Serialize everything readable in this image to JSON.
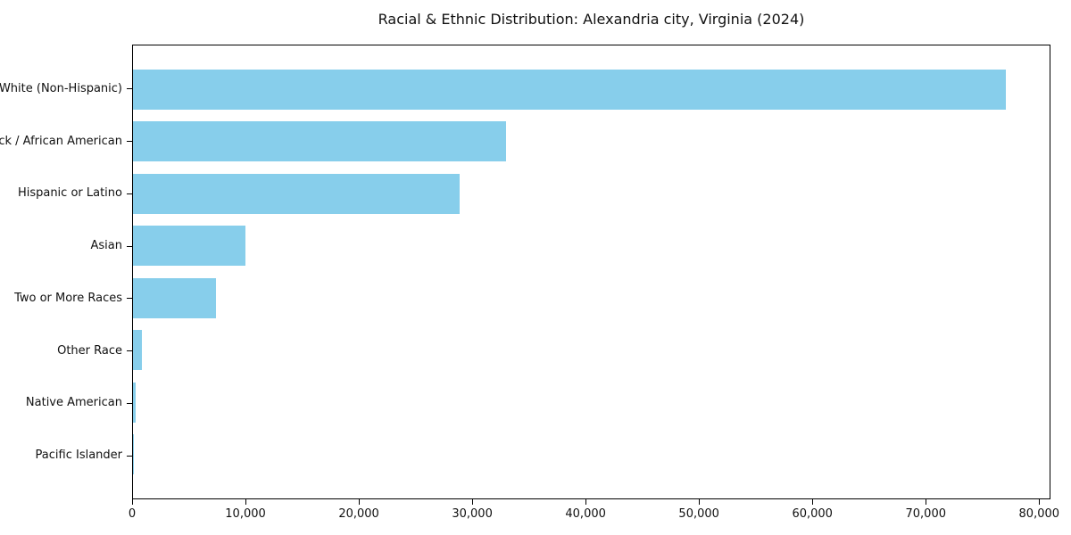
{
  "title": "Racial & Ethnic Distribution: Alexandria city, Virginia (2024)",
  "colors": {
    "bar": "#87CEEB",
    "axis": "#000000",
    "text": "#111111",
    "background": "#ffffff"
  },
  "chart_data": {
    "type": "bar",
    "orientation": "horizontal",
    "title": "Racial & Ethnic Distribution: Alexandria city, Virginia (2024)",
    "xlabel": "",
    "ylabel": "",
    "categories": [
      "White (Non-Hispanic)",
      "Black / African American",
      "Hispanic or Latino",
      "Asian",
      "Two or More Races",
      "Other Race",
      "Native American",
      "Pacific Islander"
    ],
    "values": [
      77100,
      33000,
      28900,
      9900,
      7300,
      800,
      250,
      60
    ],
    "xlim": [
      0,
      81000
    ],
    "x_ticks": [
      0,
      10000,
      20000,
      30000,
      40000,
      50000,
      60000,
      70000,
      80000
    ],
    "x_tick_labels": [
      "0",
      "10,000",
      "20,000",
      "30,000",
      "40,000",
      "50,000",
      "60,000",
      "70,000",
      "80,000"
    ],
    "bar_color": "#87CEEB",
    "grid": false,
    "legend_position": "none"
  }
}
